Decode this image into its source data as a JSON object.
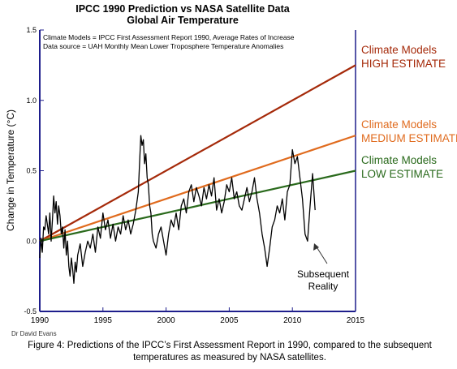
{
  "chart_data": {
    "type": "line",
    "title": "IPCC 1990 Prediction vs NASA Satellite Data",
    "subtitle": "Global Air Temperature",
    "ylabel": "Change in Temperature (°C)",
    "xlabel": "",
    "xlim": [
      1990,
      2015
    ],
    "ylim": [
      -0.5,
      1.5
    ],
    "x_ticks": [
      "1990",
      "1995",
      "2000",
      "2005",
      "2010",
      "2015"
    ],
    "y_ticks": [
      "-0.5",
      "0.0",
      "0.5",
      "1.0",
      "1.5"
    ],
    "grid": false,
    "notes": [
      "Climate Models = IPCC First Assessment Report 1990, Average Rates of Increase",
      "Data source = UAH Monthly Mean Lower Troposphere Temperature Anomalies"
    ],
    "trend_lines": [
      {
        "name_line1": "Climate Models",
        "name_line2": "HIGH ESTIMATE",
        "color": "#a52a0a",
        "x": [
          1990,
          2015
        ],
        "y": [
          0.0,
          1.25
        ]
      },
      {
        "name_line1": "Climate Models",
        "name_line2": "MEDIUM ESTIMATE",
        "color": "#e06b1e",
        "x": [
          1990,
          2015
        ],
        "y": [
          0.0,
          0.75
        ]
      },
      {
        "name_line1": "Climate Models",
        "name_line2": "LOW ESTIMATE",
        "color": "#2a6a1c",
        "x": [
          1990,
          2015
        ],
        "y": [
          0.0,
          0.5
        ]
      }
    ],
    "observed": {
      "color": "#000000",
      "annotation_line1": "Subsequent",
      "annotation_line2": "Reality",
      "x": [
        1990.0,
        1990.1,
        1990.2,
        1990.3,
        1990.4,
        1990.5,
        1990.6,
        1990.7,
        1990.8,
        1990.9,
        1991.0,
        1991.1,
        1991.2,
        1991.3,
        1991.4,
        1991.5,
        1991.6,
        1991.7,
        1991.8,
        1991.9,
        1992.0,
        1992.1,
        1992.2,
        1992.3,
        1992.4,
        1992.5,
        1992.6,
        1992.7,
        1992.8,
        1992.9,
        1993.0,
        1993.2,
        1993.4,
        1993.6,
        1993.8,
        1994.0,
        1994.2,
        1994.4,
        1994.6,
        1994.8,
        1995.0,
        1995.2,
        1995.4,
        1995.6,
        1995.8,
        1996.0,
        1996.2,
        1996.4,
        1996.6,
        1996.8,
        1997.0,
        1997.2,
        1997.4,
        1997.6,
        1997.8,
        1997.9,
        1998.0,
        1998.1,
        1998.2,
        1998.3,
        1998.4,
        1998.5,
        1998.6,
        1998.7,
        1998.8,
        1998.9,
        1999.0,
        1999.2,
        1999.4,
        1999.6,
        1999.8,
        2000.0,
        2000.2,
        2000.4,
        2000.6,
        2000.8,
        2001.0,
        2001.2,
        2001.4,
        2001.6,
        2001.8,
        2002.0,
        2002.2,
        2002.4,
        2002.6,
        2002.8,
        2003.0,
        2003.2,
        2003.4,
        2003.6,
        2003.8,
        2004.0,
        2004.2,
        2004.4,
        2004.6,
        2004.8,
        2005.0,
        2005.2,
        2005.4,
        2005.6,
        2005.8,
        2006.0,
        2006.2,
        2006.4,
        2006.6,
        2006.8,
        2007.0,
        2007.2,
        2007.4,
        2007.6,
        2007.8,
        2008.0,
        2008.2,
        2008.4,
        2008.6,
        2008.8,
        2009.0,
        2009.2,
        2009.4,
        2009.6,
        2009.8,
        2010.0,
        2010.2,
        2010.4,
        2010.6,
        2010.8,
        2011.0,
        2011.2,
        2011.4,
        2011.6,
        2011.8
      ],
      "y": [
        -0.12,
        0.02,
        -0.08,
        0.1,
        0.08,
        0.18,
        0.12,
        0.05,
        0.2,
        0.0,
        0.15,
        0.32,
        0.2,
        0.28,
        0.12,
        0.25,
        0.18,
        0.05,
        0.1,
        -0.05,
        0.08,
        -0.1,
        0.0,
        -0.18,
        -0.25,
        -0.12,
        -0.2,
        -0.3,
        -0.15,
        -0.22,
        -0.1,
        -0.02,
        -0.18,
        -0.08,
        0.0,
        -0.05,
        0.05,
        -0.08,
        0.1,
        0.02,
        0.2,
        0.08,
        0.15,
        0.02,
        0.12,
        0.0,
        0.1,
        0.05,
        0.18,
        0.08,
        0.15,
        0.05,
        0.12,
        0.22,
        0.35,
        0.55,
        0.75,
        0.68,
        0.72,
        0.55,
        0.62,
        0.45,
        0.4,
        0.25,
        0.2,
        0.05,
        0.0,
        -0.05,
        0.05,
        0.1,
        0.0,
        -0.1,
        0.05,
        0.15,
        0.1,
        0.2,
        0.08,
        0.25,
        0.3,
        0.2,
        0.35,
        0.4,
        0.28,
        0.38,
        0.32,
        0.25,
        0.38,
        0.3,
        0.4,
        0.32,
        0.45,
        0.22,
        0.3,
        0.2,
        0.28,
        0.4,
        0.35,
        0.45,
        0.3,
        0.35,
        0.25,
        0.22,
        0.3,
        0.38,
        0.28,
        0.35,
        0.45,
        0.3,
        0.2,
        0.05,
        -0.05,
        -0.18,
        -0.05,
        0.1,
        0.15,
        0.25,
        0.2,
        0.3,
        0.15,
        0.35,
        0.4,
        0.65,
        0.55,
        0.6,
        0.45,
        0.3,
        0.05,
        0.0,
        0.25,
        0.48,
        0.22
      ]
    }
  },
  "credit": "Dr David Evans",
  "caption": "Figure 4: Predictions of the IPCC’s First Assessment Report in 1990, compared to the subsequent temperatures as measured by NASA satellites."
}
